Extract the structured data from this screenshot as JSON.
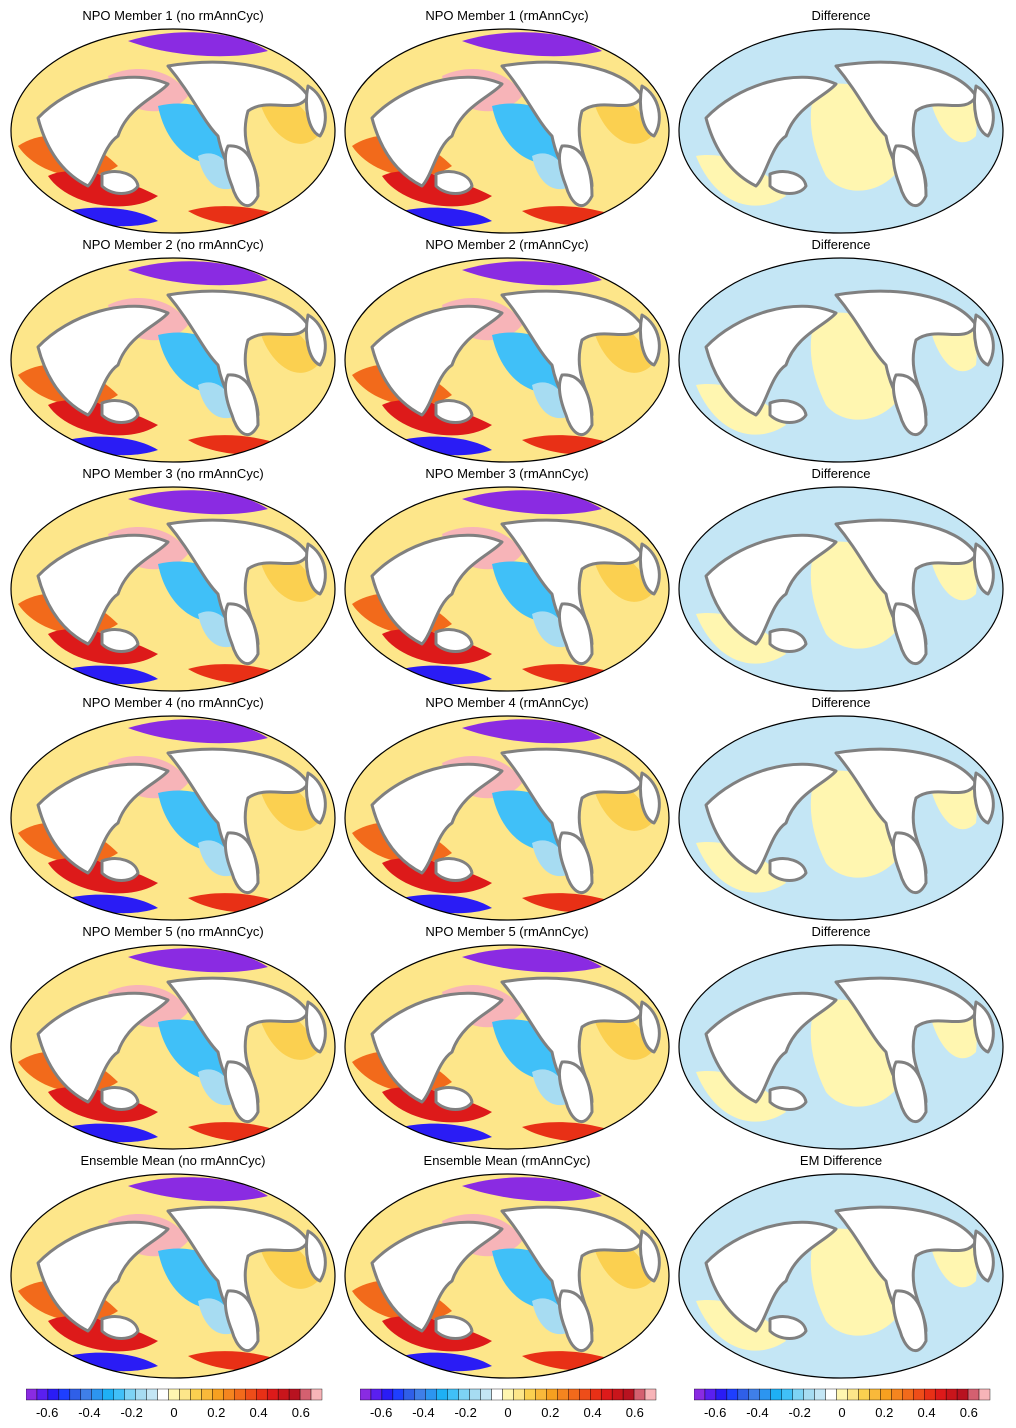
{
  "chart_data": {
    "type": "heatmap",
    "columns": [
      "no rmAnnCyc",
      "rmAnnCyc",
      "Difference"
    ],
    "panels": [
      {
        "title": "NPO Member 1 (no rmAnnCyc)",
        "kind": "field"
      },
      {
        "title": "NPO Member 1 (rmAnnCyc)",
        "kind": "field"
      },
      {
        "title": "Difference",
        "kind": "diff"
      },
      {
        "title": "NPO Member 2 (no rmAnnCyc)",
        "kind": "field"
      },
      {
        "title": "NPO Member 2 (rmAnnCyc)",
        "kind": "field"
      },
      {
        "title": "Difference",
        "kind": "diff"
      },
      {
        "title": "NPO Member 3 (no rmAnnCyc)",
        "kind": "field"
      },
      {
        "title": "NPO Member 3 (rmAnnCyc)",
        "kind": "field"
      },
      {
        "title": "Difference",
        "kind": "diff"
      },
      {
        "title": "NPO Member 4 (no rmAnnCyc)",
        "kind": "field"
      },
      {
        "title": "NPO Member 4 (rmAnnCyc)",
        "kind": "field"
      },
      {
        "title": "Difference",
        "kind": "diff"
      },
      {
        "title": "NPO Member 5 (no rmAnnCyc)",
        "kind": "field"
      },
      {
        "title": "NPO Member 5 (rmAnnCyc)",
        "kind": "field"
      },
      {
        "title": "Difference",
        "kind": "diff"
      },
      {
        "title": "Ensemble Mean (no rmAnnCyc)",
        "kind": "field"
      },
      {
        "title": "Ensemble Mean (rmAnnCyc)",
        "kind": "field"
      },
      {
        "title": "EM Difference",
        "kind": "diff"
      }
    ],
    "colorbar": {
      "levels": [
        -0.7,
        -0.65,
        -0.6,
        -0.55,
        -0.5,
        -0.45,
        -0.4,
        -0.35,
        -0.3,
        -0.25,
        -0.2,
        -0.15,
        -0.1,
        -0.05,
        0,
        0.05,
        0.1,
        0.15,
        0.2,
        0.25,
        0.3,
        0.35,
        0.4,
        0.45,
        0.5,
        0.55,
        0.6,
        0.65,
        0.7
      ],
      "colors": [
        "#8a2be2",
        "#5a1ff0",
        "#2a1cf5",
        "#1e3fff",
        "#2f5fe8",
        "#3f7fe8",
        "#2c95f0",
        "#1eb0f5",
        "#40c0f8",
        "#7dd3f5",
        "#a7dcf2",
        "#c4e6f5",
        "#ffffff",
        "#fff6b0",
        "#fde68a",
        "#fbd050",
        "#f9b93a",
        "#f7a020",
        "#f5851f",
        "#f26a1b",
        "#ee4d19",
        "#e83016",
        "#dd1a1a",
        "#c9151b",
        "#b81220",
        "#d46070",
        "#f7b4b8"
      ],
      "tick_labels": [
        "-0.6",
        "-0.4",
        "-0.2",
        "0",
        "0.2",
        "0.4",
        "0.6"
      ],
      "tick_values": [
        -0.6,
        -0.4,
        -0.2,
        0,
        0.2,
        0.4,
        0.6
      ]
    }
  }
}
